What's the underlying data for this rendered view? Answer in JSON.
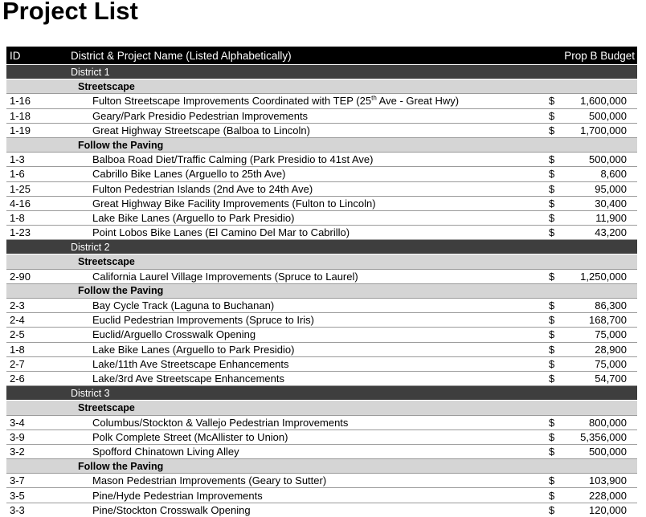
{
  "page": {
    "title": "Project List"
  },
  "colors": {
    "header_bg": "#000000",
    "header_text": "#ffffff",
    "district_bar_bg": "#3e3e3e",
    "district_bar_text": "#ffffff",
    "section_bar_bg": "#d5d5d5",
    "row_divider": "#9a9a9a"
  },
  "table": {
    "columns": {
      "id": "ID",
      "name": "District & Project Name (Listed Alphabetically)",
      "budget": "Prop B Budget"
    },
    "rows": [
      {
        "type": "district",
        "name": "District 1"
      },
      {
        "type": "section",
        "name": "Streetscape"
      },
      {
        "type": "project",
        "id": "1-16",
        "name_pre": "Fulton Streetscape Improvements Coordinated with TEP (25",
        "name_sup": "th",
        "name_post": " Ave - Great Hwy)",
        "dollar": "$",
        "amount": "1,600,000"
      },
      {
        "type": "project",
        "id": "1-18",
        "name": "Geary/Park Presidio Pedestrian Improvements",
        "dollar": "$",
        "amount": "500,000"
      },
      {
        "type": "project",
        "id": "1-19",
        "name": "Great Highway Streetscape (Balboa to Lincoln)",
        "dollar": "$",
        "amount": "1,700,000"
      },
      {
        "type": "section",
        "name": "Follow the Paving"
      },
      {
        "type": "project",
        "id": "1-3",
        "name": "Balboa Road Diet/Traffic Calming (Park Presidio to 41st Ave)",
        "dollar": "$",
        "amount": "500,000"
      },
      {
        "type": "project",
        "id": "1-6",
        "name": "Cabrillo Bike Lanes (Arguello to 25th Ave)",
        "dollar": "$",
        "amount": "8,600"
      },
      {
        "type": "project",
        "id": "1-25",
        "name": "Fulton Pedestrian Islands (2nd Ave to 24th Ave)",
        "dollar": "$",
        "amount": "95,000"
      },
      {
        "type": "project",
        "id": "4-16",
        "name": "Great Highway Bike Facility Improvements (Fulton to Lincoln)",
        "dollar": "$",
        "amount": "30,400"
      },
      {
        "type": "project",
        "id": "1-8",
        "name": "Lake Bike Lanes (Arguello to Park Presidio)",
        "dollar": "$",
        "amount": "11,900"
      },
      {
        "type": "project",
        "id": "1-23",
        "name": "Point Lobos Bike Lanes (El Camino Del Mar to Cabrillo)",
        "dollar": "$",
        "amount": "43,200"
      },
      {
        "type": "district",
        "name": "District 2"
      },
      {
        "type": "section",
        "name": "Streetscape"
      },
      {
        "type": "project",
        "id": "2-90",
        "name": "California Laurel Village Improvements (Spruce to Laurel)",
        "dollar": "$",
        "amount": "1,250,000"
      },
      {
        "type": "section",
        "name": "Follow the Paving"
      },
      {
        "type": "project",
        "id": "2-3",
        "name": "Bay Cycle Track (Laguna to Buchanan)",
        "dollar": "$",
        "amount": "86,300"
      },
      {
        "type": "project",
        "id": "2-4",
        "name": "Euclid Pedestrian Improvements (Spruce to Iris)",
        "dollar": "$",
        "amount": "168,700"
      },
      {
        "type": "project",
        "id": "2-5",
        "name": "Euclid/Arguello Crosswalk Opening",
        "dollar": "$",
        "amount": "75,000"
      },
      {
        "type": "project",
        "id": "1-8",
        "name": "Lake Bike Lanes (Arguello to Park Presidio)",
        "dollar": "$",
        "amount": "28,900"
      },
      {
        "type": "project",
        "id": "2-7",
        "name": "Lake/11th Ave Streetscape Enhancements",
        "dollar": "$",
        "amount": "75,000"
      },
      {
        "type": "project",
        "id": "2-6",
        "name": "Lake/3rd Ave Streetscape Enhancements",
        "dollar": "$",
        "amount": "54,700"
      },
      {
        "type": "district",
        "name": "District 3"
      },
      {
        "type": "section",
        "name": "Streetscape"
      },
      {
        "type": "project",
        "id": "3-4",
        "name": "Columbus/Stockton & Vallejo Pedestrian Improvements",
        "dollar": "$",
        "amount": "800,000"
      },
      {
        "type": "project",
        "id": "3-9",
        "name": "Polk Complete Street (McAllister to Union)",
        "dollar": "$",
        "amount": "5,356,000"
      },
      {
        "type": "project",
        "id": "3-2",
        "name": "Spofford Chinatown Living Alley",
        "dollar": "$",
        "amount": "500,000"
      },
      {
        "type": "section",
        "name": "Follow the Paving"
      },
      {
        "type": "project",
        "id": "3-7",
        "name": "Mason Pedestrian Improvements (Geary to Sutter)",
        "dollar": "$",
        "amount": "103,900"
      },
      {
        "type": "project",
        "id": "3-5",
        "name": "Pine/Hyde Pedestrian Improvements",
        "dollar": "$",
        "amount": "228,000"
      },
      {
        "type": "project",
        "id": "3-3",
        "name": "Pine/Stockton Crosswalk Opening",
        "dollar": "$",
        "amount": "120,000"
      }
    ]
  }
}
